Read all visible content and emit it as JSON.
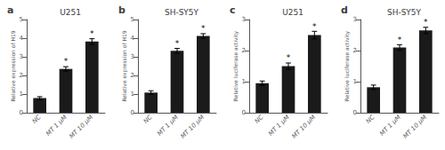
{
  "chart_data": [
    {
      "type": "bar",
      "label": "a",
      "title": "U251",
      "ylabel": "Relative expression of H19",
      "categories": [
        "NC",
        "MT 1 μM",
        "MT 10 μM"
      ],
      "values": [
        0.78,
        2.35,
        3.82
      ],
      "errors": [
        0.08,
        0.12,
        0.15
      ],
      "annotations": [
        {
          "category": "MT 1 μM",
          "text": "*"
        },
        {
          "category": "MT 10 μM",
          "text": "*"
        }
      ],
      "color": "#1a1a1a",
      "ylim": [
        0,
        5
      ],
      "yticks": [
        0,
        1,
        2,
        3,
        4,
        5
      ],
      "grid": false
    },
    {
      "type": "bar",
      "label": "b",
      "title": "SH-SY5Y",
      "ylabel": "Relative expression of H19",
      "categories": [
        "NC",
        "MT 1 μM",
        "MT 10 μM"
      ],
      "values": [
        1.08,
        3.32,
        4.12
      ],
      "errors": [
        0.1,
        0.13,
        0.12
      ],
      "annotations": [
        {
          "category": "MT 1 μM",
          "text": "*"
        },
        {
          "category": "MT 10 μM",
          "text": "*"
        }
      ],
      "color": "#1a1a1a",
      "ylim": [
        0,
        5
      ],
      "yticks": [
        0,
        1,
        2,
        3,
        4,
        5
      ],
      "grid": false
    },
    {
      "type": "bar",
      "label": "c",
      "title": "U251",
      "ylabel": "Relative luciferase activity",
      "categories": [
        "NC",
        "MT 1 μM",
        "MT 10 μM"
      ],
      "values": [
        0.95,
        1.5,
        2.5
      ],
      "errors": [
        0.07,
        0.1,
        0.12
      ],
      "annotations": [
        {
          "category": "MT 1 μM",
          "text": "*"
        },
        {
          "category": "MT 10 μM",
          "text": "*"
        }
      ],
      "color": "#1a1a1a",
      "ylim": [
        0,
        3
      ],
      "yticks": [
        0,
        1,
        2,
        3
      ],
      "grid": false
    },
    {
      "type": "bar",
      "label": "d",
      "title": "SH-SY5Y",
      "ylabel": "Relative luciferase activity",
      "categories": [
        "NC",
        "MT 1 μM",
        "MT 10 μM"
      ],
      "values": [
        0.82,
        2.1,
        2.65
      ],
      "errors": [
        0.07,
        0.09,
        0.1
      ],
      "annotations": [
        {
          "category": "MT 1 μM",
          "text": "*"
        },
        {
          "category": "MT 10 μM",
          "text": "*"
        }
      ],
      "color": "#1a1a1a",
      "ylim": [
        0,
        3
      ],
      "yticks": [
        0,
        1,
        2,
        3
      ],
      "grid": false
    }
  ]
}
